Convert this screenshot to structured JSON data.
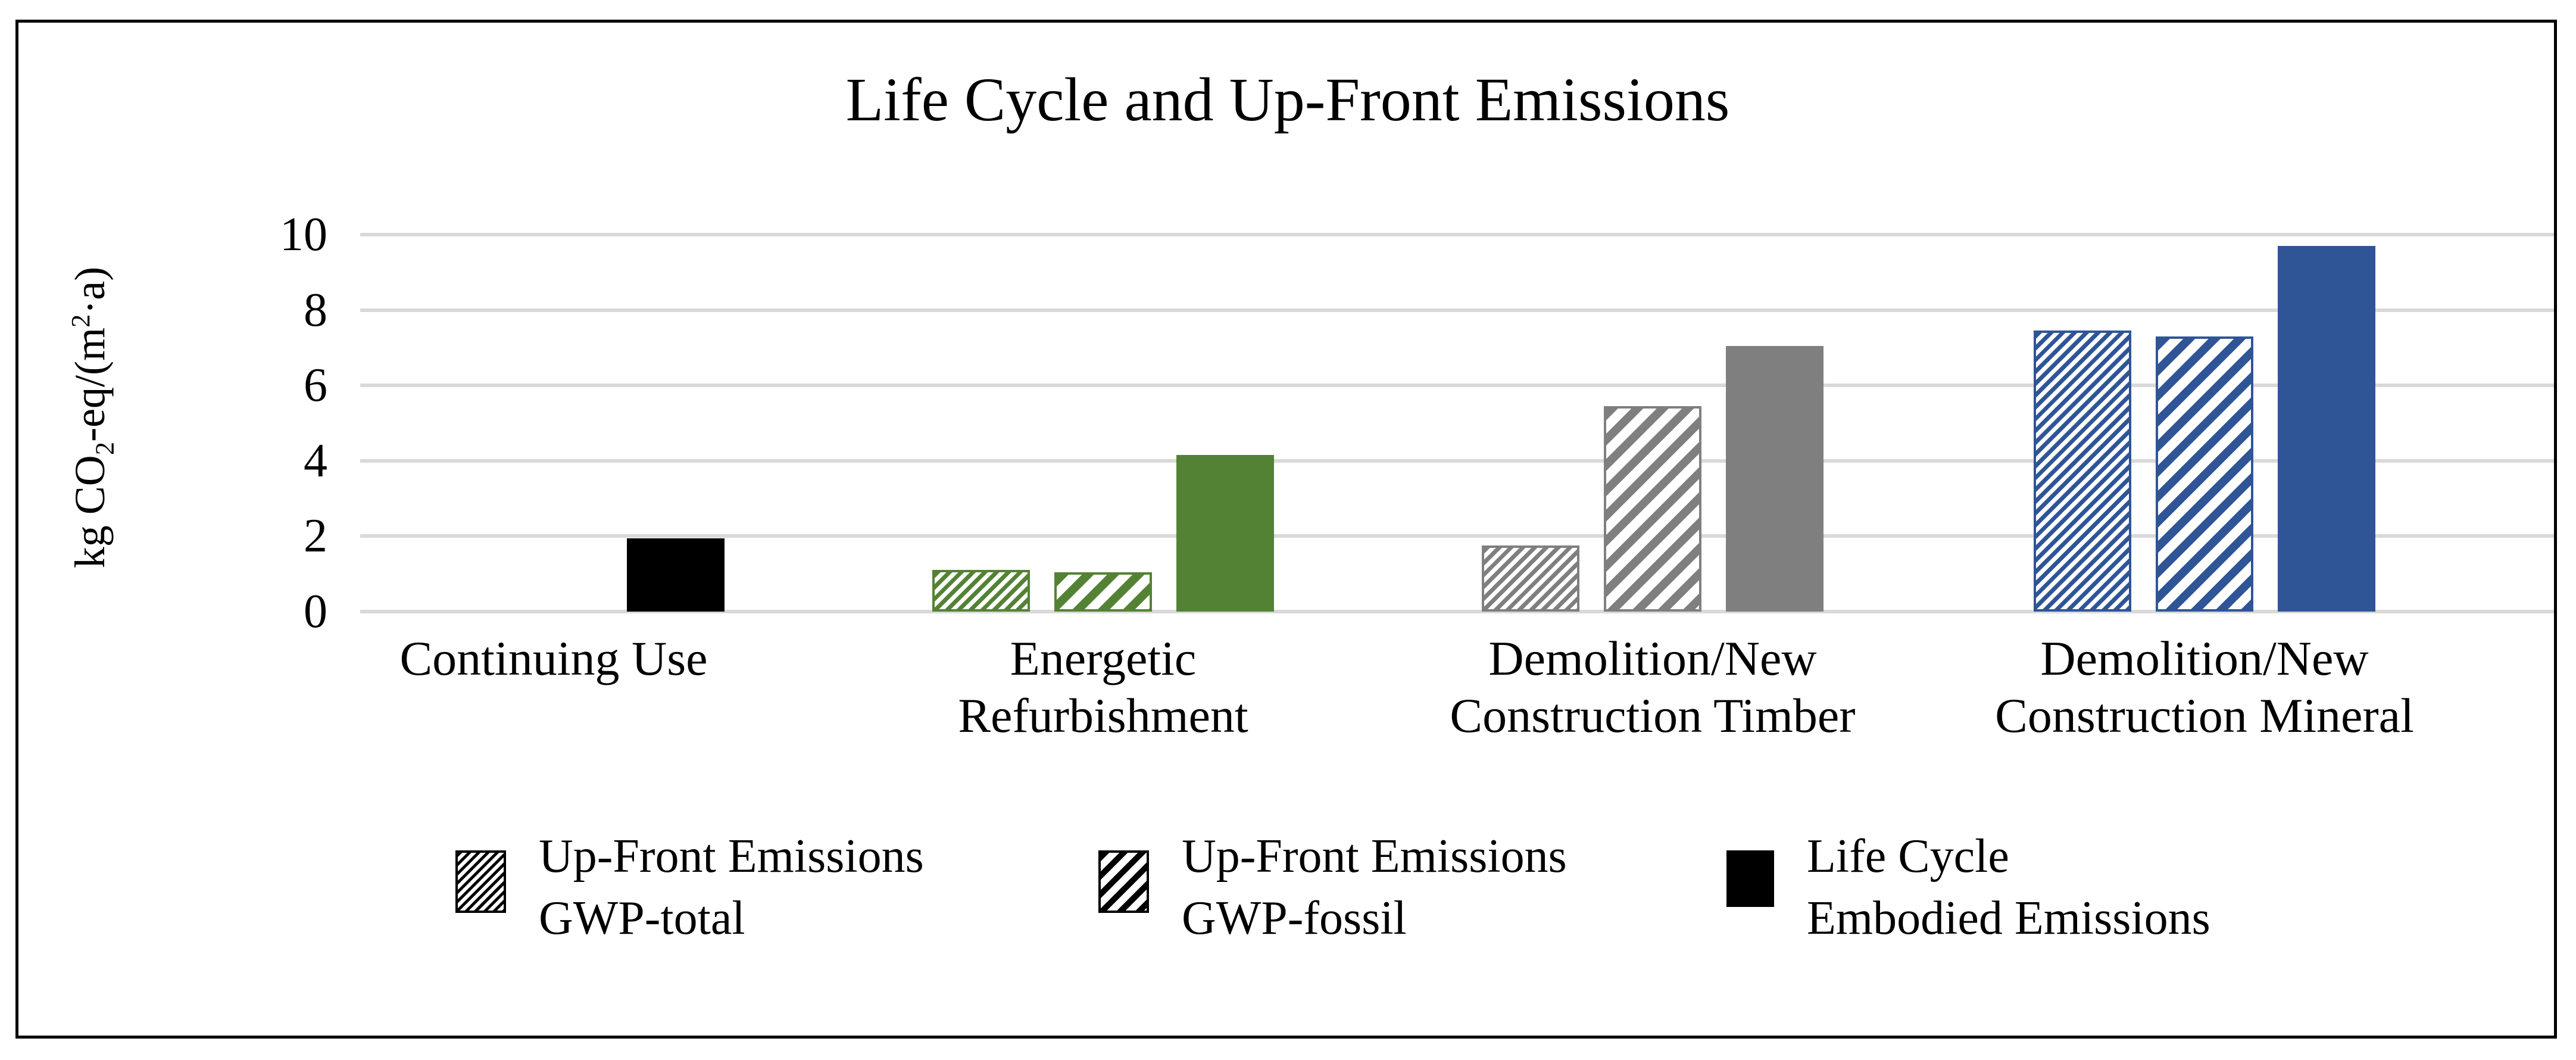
{
  "chart_data": {
    "type": "bar",
    "title": "Life Cycle and Up-Front Emissions",
    "ylabel": "kg CO2-eq/(m2·a)",
    "xlabel": "",
    "ylim": [
      0,
      10
    ],
    "ytick_step": 2,
    "grid": true,
    "legend_position": "bottom",
    "categories": [
      "Continuing Use",
      "Energetic Refurbishment",
      "Demolition/New Construction Timber",
      "Demolition/New Construction Mineral"
    ],
    "category_label_lines": [
      [
        "Continuing Use"
      ],
      [
        "Energetic",
        "Refurbishment"
      ],
      [
        "Demolition/New",
        "Construction Timber"
      ],
      [
        "Demolition/New",
        "Construction Mineral"
      ]
    ],
    "group_colors": [
      "#000000",
      "#548235",
      "#7F7F7F",
      "#2F5597"
    ],
    "series": [
      {
        "name": "Up-Front Emissions GWP-total",
        "pattern": "fine-diagonal-hatch",
        "values": [
          0,
          1.1,
          1.75,
          7.45
        ]
      },
      {
        "name": "Up-Front Emissions GWP-fossil",
        "pattern": "coarse-diagonal-hatch",
        "values": [
          0,
          1.05,
          5.45,
          7.3
        ]
      },
      {
        "name": "Life Cycle Embodied Emissions",
        "pattern": "solid",
        "values": [
          1.95,
          4.15,
          7.05,
          9.7
        ]
      }
    ]
  },
  "y_axis": {
    "ticks": [
      0,
      2,
      4,
      6,
      8,
      10
    ],
    "title_parts": {
      "pre": "kg CO",
      "sub": "2",
      "mid": "-eq/(m",
      "sup": "2",
      "dot": "·",
      "post": "a)"
    }
  },
  "legend": {
    "items": [
      {
        "label_lines": [
          "Up-Front Emissions",
          "GWP-total"
        ],
        "swatch": "fine-diagonal-hatch-black"
      },
      {
        "label_lines": [
          "Up-Front Emissions",
          "GWP-fossil"
        ],
        "swatch": "coarse-diagonal-hatch-black"
      },
      {
        "label_lines": [
          "Life Cycle",
          "Embodied Emissions"
        ],
        "swatch": "solid-black"
      }
    ]
  },
  "colors": {
    "gridline": "#D9D9D9",
    "text": "#000000",
    "frame_border": "#000000",
    "continuing_use": "#000000",
    "energetic_refurbishment": "#548235",
    "demolition_timber": "#7F7F7F",
    "demolition_mineral": "#2F5597",
    "background": "#FFFFFF"
  }
}
